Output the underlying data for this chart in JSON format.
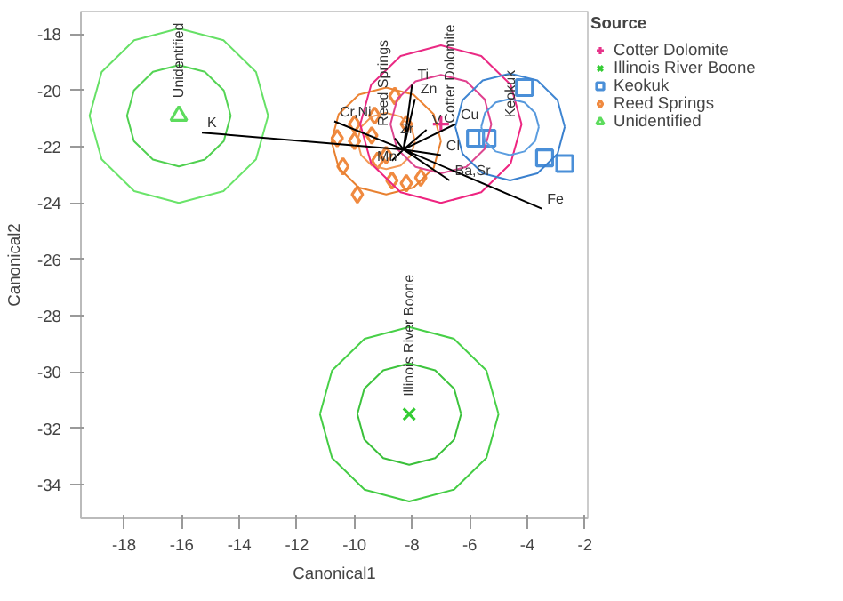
{
  "chart_data": {
    "type": "scatter",
    "xlabel": "Canonical1",
    "ylabel": "Canonical2",
    "legend_title": "Source",
    "legend": "top right",
    "grid": false,
    "xlim": [
      -19.5,
      -1.9
    ],
    "ylim": [
      -35.2,
      -17.2
    ],
    "xticks": [
      -18,
      -16,
      -14,
      -12,
      -10,
      -8,
      -6,
      -4,
      -2
    ],
    "yticks": [
      -34,
      -32,
      -30,
      -28,
      -26,
      -24,
      -22,
      -20,
      -18
    ],
    "series": [
      {
        "name": "Cotter Dolomite",
        "color": "#e6338a",
        "marker": "cross",
        "x": [
          -7.0
        ],
        "values": [
          -21.2
        ]
      },
      {
        "name": "Illinois River Boone",
        "color": "#33cc33",
        "marker": "x",
        "x": [
          -8.1
        ],
        "values": [
          -31.5
        ]
      },
      {
        "name": "Keokuk",
        "color": "#4a8fd8",
        "marker": "square",
        "x": [
          -5.8,
          -5.4,
          -4.1,
          -3.4,
          -2.7
        ],
        "values": [
          -21.7,
          -21.7,
          -19.9,
          -22.4,
          -22.6
        ]
      },
      {
        "name": "Reed Springs",
        "color": "#f08a40",
        "marker": "diamond",
        "x": [
          -10.4,
          -9.9,
          -10.0,
          -10.0,
          -9.4,
          -9.2,
          -8.7,
          -8.2,
          -7.7,
          -8.2,
          -8.9,
          -8.6,
          -10.6,
          -9.3
        ],
        "values": [
          -22.7,
          -23.7,
          -21.2,
          -21.8,
          -21.6,
          -22.5,
          -23.2,
          -23.3,
          -23.1,
          -21.2,
          -22.3,
          -20.2,
          -21.7,
          -20.9
        ]
      },
      {
        "name": "Unidentified",
        "color": "#5ddc5d",
        "marker": "triangle",
        "x": [
          -16.1
        ],
        "values": [
          -20.9
        ]
      },
      {
        "type": "line",
        "color": "#55d455",
        "x": [
          -14.3,
          -14.54,
          -15.2,
          -16.1,
          -17.0,
          -17.66,
          -17.9
        ],
        "values": [
          -20.9,
          -20.0,
          -19.34,
          -19.1,
          -19.34,
          -20.0,
          -20.9
        ]
      },
      {
        "type": "line",
        "color": "#50d050",
        "x": [
          -17.9,
          -17.66,
          -17.0,
          -16.1,
          -15.2,
          -14.54,
          -14.3
        ],
        "values": [
          -20.9,
          -21.8,
          -22.46,
          -22.7,
          -22.46,
          -21.8,
          -20.9
        ]
      },
      {
        "type": "line",
        "color": "#66e066",
        "x": [
          -13.0,
          -13.42,
          -14.55,
          -16.1,
          -17.65,
          -18.78,
          -19.2
        ],
        "values": [
          -20.9,
          -19.35,
          -18.22,
          -17.8,
          -18.22,
          -19.35,
          -20.9
        ]
      },
      {
        "type": "line",
        "color": "#6ae46a",
        "x": [
          -19.2,
          -18.78,
          -17.65,
          -16.1,
          -14.55,
          -13.42,
          -13.0
        ],
        "values": [
          -20.9,
          -22.45,
          -23.58,
          -24.0,
          -23.58,
          -22.45,
          -20.9
        ]
      },
      {
        "type": "line",
        "color": "#3ec43e",
        "x": [
          -6.3,
          -6.54,
          -7.2,
          -8.1,
          -9.0,
          -9.66,
          -9.9
        ],
        "values": [
          -31.5,
          -30.6,
          -29.94,
          -29.7,
          -29.94,
          -30.6,
          -31.5
        ]
      },
      {
        "type": "line",
        "color": "#3ac03a",
        "x": [
          -9.9,
          -9.66,
          -9.0,
          -8.1,
          -7.2,
          -6.54,
          -6.3
        ],
        "values": [
          -31.5,
          -32.4,
          -33.06,
          -33.3,
          -33.06,
          -32.4,
          -31.5
        ]
      },
      {
        "type": "line",
        "color": "#48d048",
        "x": [
          -5.0,
          -5.42,
          -6.55,
          -8.1,
          -9.65,
          -10.78,
          -11.2
        ],
        "values": [
          -31.5,
          -29.95,
          -28.82,
          -28.4,
          -28.82,
          -29.95,
          -31.5
        ]
      },
      {
        "type": "line",
        "color": "#44cc44",
        "x": [
          -11.2,
          -10.78,
          -9.65,
          -8.1,
          -6.55,
          -5.42,
          -5.0
        ],
        "values": [
          -31.5,
          -33.05,
          -34.18,
          -34.6,
          -34.18,
          -33.05,
          -31.5
        ]
      },
      {
        "type": "line",
        "color": "#f29450",
        "x": [
          -7.9,
          -8.03,
          -8.4,
          -8.9,
          -9.4,
          -9.77,
          -9.9
        ],
        "values": [
          -21.8,
          -21.3,
          -20.93,
          -20.8,
          -20.93,
          -21.3,
          -21.8
        ]
      },
      {
        "type": "line",
        "color": "#f49a58",
        "x": [
          -9.9,
          -9.77,
          -9.4,
          -8.9,
          -8.4,
          -8.03,
          -7.9
        ],
        "values": [
          -21.8,
          -22.3,
          -22.67,
          -22.8,
          -22.67,
          -22.3,
          -21.8
        ]
      },
      {
        "type": "line",
        "color": "#ec8434",
        "x": [
          -7.0,
          -7.25,
          -7.95,
          -8.9,
          -9.85,
          -10.55,
          -10.8
        ],
        "values": [
          -21.8,
          -20.85,
          -20.15,
          -19.9,
          -20.15,
          -20.85,
          -21.8
        ]
      },
      {
        "type": "line",
        "color": "#e88030",
        "x": [
          -10.8,
          -10.55,
          -9.85,
          -8.9,
          -7.95,
          -7.25,
          -7.0
        ],
        "values": [
          -21.8,
          -22.75,
          -23.45,
          -23.7,
          -23.45,
          -22.75,
          -21.8
        ]
      },
      {
        "type": "line",
        "color": "#e0408e",
        "x": [
          -5.25,
          -5.48,
          -6.12,
          -7.0,
          -7.88,
          -8.52,
          -8.75
        ],
        "values": [
          -21.2,
          -20.32,
          -19.68,
          -19.45,
          -19.68,
          -20.32,
          -21.2
        ]
      },
      {
        "type": "line",
        "color": "#dc4890",
        "x": [
          -8.75,
          -8.52,
          -7.88,
          -7.0,
          -6.12,
          -5.48,
          -5.25
        ],
        "values": [
          -21.2,
          -22.08,
          -22.72,
          -22.95,
          -22.72,
          -22.08,
          -21.2
        ]
      },
      {
        "type": "line",
        "color": "#ea2a84",
        "x": [
          -4.2,
          -4.58,
          -5.6,
          -7.0,
          -8.4,
          -9.42,
          -9.8
        ],
        "values": [
          -21.2,
          -19.8,
          -18.78,
          -18.4,
          -18.78,
          -19.8,
          -21.2
        ]
      },
      {
        "type": "line",
        "color": "#ee2480",
        "x": [
          -9.8,
          -9.42,
          -8.4,
          -7.0,
          -5.6,
          -4.58,
          -4.2
        ],
        "values": [
          -21.2,
          -22.6,
          -23.62,
          -24.0,
          -23.62,
          -22.6,
          -21.2
        ]
      },
      {
        "type": "line",
        "color": "#5698dc",
        "x": [
          -3.6,
          -3.73,
          -4.1,
          -4.6,
          -5.1,
          -5.47,
          -5.6
        ],
        "values": [
          -21.3,
          -20.8,
          -20.43,
          -20.3,
          -20.43,
          -20.8,
          -21.3
        ]
      },
      {
        "type": "line",
        "color": "#5c9ee0",
        "x": [
          -5.6,
          -5.47,
          -5.1,
          -4.6,
          -4.1,
          -3.73,
          -3.6
        ],
        "values": [
          -21.3,
          -21.8,
          -22.17,
          -22.3,
          -22.17,
          -21.8,
          -21.3
        ]
      },
      {
        "type": "line",
        "color": "#4086d2",
        "x": [
          -2.7,
          -2.95,
          -3.65,
          -4.6,
          -5.55,
          -6.25,
          -6.5
        ],
        "values": [
          -21.3,
          -20.35,
          -19.65,
          -19.4,
          -19.65,
          -20.35,
          -21.3
        ]
      },
      {
        "type": "line",
        "color": "#3a80ce",
        "x": [
          -6.5,
          -6.25,
          -5.55,
          -4.6,
          -3.65,
          -2.95,
          -2.7
        ],
        "values": [
          -21.3,
          -22.25,
          -22.95,
          -23.2,
          -22.95,
          -22.25,
          -21.3
        ]
      },
      {
        "type": "line",
        "color": "#000000",
        "x": [
          -15.3,
          -8.3,
          null,
          -10.7,
          -8.3,
          null,
          -8.0,
          -8.3,
          null,
          -7.9,
          -8.3,
          null,
          -6.5,
          -8.3,
          null,
          -7.5,
          -8.3,
          null,
          -7.0,
          -8.3,
          null,
          -6.7,
          -8.3,
          null,
          -3.5,
          -8.3,
          null,
          -8.7,
          -8.3,
          null,
          -8.6,
          -8.3
        ],
        "values": [
          -21.5,
          -22.1,
          null,
          -21.1,
          -22.1,
          null,
          -19.8,
          -22.1,
          null,
          -20.3,
          -22.1,
          null,
          -21.2,
          -22.1,
          null,
          -21.4,
          -22.1,
          null,
          -22.3,
          -22.1,
          null,
          -23.2,
          -22.1,
          null,
          -24.2,
          -22.1,
          null,
          -22.5,
          -22.1,
          null,
          -21.7,
          -22.1
        ]
      }
    ],
    "annotations": [
      {
        "text": "K",
        "x": -15.3,
        "y": -21.5
      },
      {
        "text": "Cr,Ni",
        "x": -10.7,
        "y": -21.1
      },
      {
        "text": "Ti",
        "x": -8.0,
        "y": -19.8
      },
      {
        "text": "Zn",
        "x": -7.9,
        "y": -20.3
      },
      {
        "text": "Cu",
        "x": -6.5,
        "y": -21.2
      },
      {
        "text": "V",
        "x": -7.5,
        "y": -21.4
      },
      {
        "text": "Cl",
        "x": -7.0,
        "y": -22.3
      },
      {
        "text": "Ba,Sr",
        "x": -6.7,
        "y": -23.2
      },
      {
        "text": "Fe",
        "x": -3.5,
        "y": -24.2
      },
      {
        "text": "Mn",
        "x": -9.4,
        "y": -22.7
      },
      {
        "text": "Zr",
        "x": -8.6,
        "y": -21.7
      },
      {
        "text": "Unidentified",
        "x": -16.1,
        "y": -20.9
      },
      {
        "text": "Reed Springs",
        "x": -9.0,
        "y": -21.9
      },
      {
        "text": "Cotter Dolomite",
        "x": -6.7,
        "y": -21.8
      },
      {
        "text": "Keokuk",
        "x": -4.6,
        "y": -21.6
      },
      {
        "text": "Illinois River Boone",
        "x": -8.1,
        "y": -31.5
      }
    ]
  }
}
